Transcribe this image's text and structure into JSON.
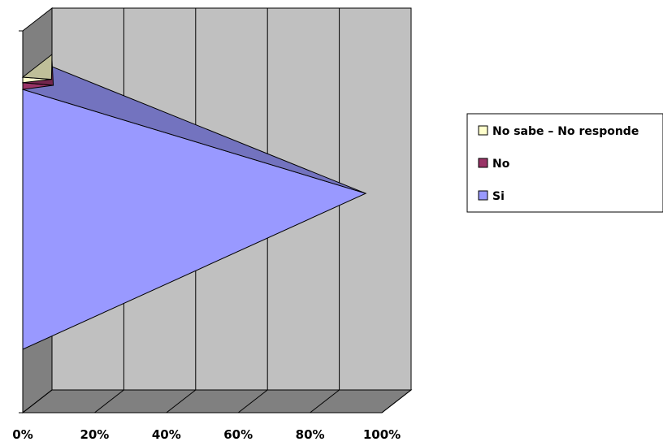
{
  "chart_data": {
    "type": "bar",
    "orientation": "horizontal",
    "stacked": "100%",
    "style": "3d-pyramid",
    "x_ticks": [
      "0%",
      "20%",
      "40%",
      "60%",
      "80%",
      "100%"
    ],
    "xlim": [
      0,
      100
    ],
    "grid": true,
    "legend_position": "right",
    "series": [
      {
        "name": "Si",
        "values": [
          95.5
        ],
        "color": "#9999ff"
      },
      {
        "name": "No",
        "values": [
          2.5
        ],
        "color": "#993366"
      },
      {
        "name": "No sabe – No responde",
        "values": [
          2.0
        ],
        "color": "#ffffcc"
      }
    ]
  }
}
